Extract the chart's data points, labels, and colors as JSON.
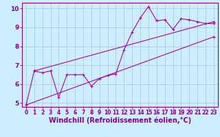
{
  "xlabel": "Windchill (Refroidissement éolien,°C)",
  "xlim": [
    -0.5,
    23.5
  ],
  "ylim": [
    4.8,
    10.3
  ],
  "xticks": [
    0,
    1,
    2,
    3,
    4,
    5,
    6,
    7,
    8,
    9,
    10,
    11,
    12,
    13,
    14,
    15,
    16,
    17,
    18,
    19,
    20,
    21,
    22,
    23
  ],
  "yticks": [
    5,
    6,
    7,
    8,
    9,
    10
  ],
  "bg_color": "#cceeff",
  "grid_color": "#aaccdd",
  "line_color": "#aa00aa",
  "line1_x": [
    0,
    1,
    2,
    3,
    4,
    5,
    6,
    7,
    8,
    9,
    10,
    11,
    12,
    13,
    14,
    15,
    16,
    17,
    18,
    19,
    20,
    21,
    22,
    23
  ],
  "line1_y": [
    4.9,
    6.7,
    6.6,
    6.7,
    5.3,
    6.5,
    6.5,
    6.5,
    5.9,
    6.3,
    6.45,
    6.55,
    7.8,
    8.75,
    9.5,
    10.1,
    9.35,
    9.4,
    8.9,
    9.45,
    9.4,
    9.3,
    9.2,
    9.2
  ],
  "line2_x": [
    0,
    23
  ],
  "line2_y": [
    4.9,
    8.5
  ],
  "line3_x": [
    1,
    23
  ],
  "line3_y": [
    6.7,
    9.3
  ],
  "font_color": "#880088",
  "tick_fontsize": 5.5,
  "xlabel_fontsize": 7.0
}
